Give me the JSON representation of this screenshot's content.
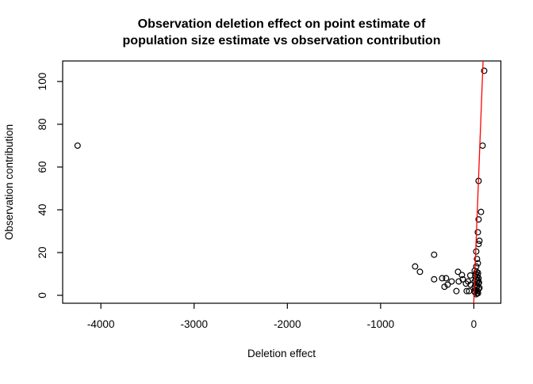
{
  "chart_data": {
    "type": "scatter",
    "title_line1": "Observation deletion effect on point estimate of",
    "title_line2": "population size estimate vs observation contribution",
    "xlabel": "Deletion effect",
    "ylabel": "Observation contribution",
    "x_ticks": [
      -4000,
      -3000,
      -2000,
      -1000,
      0
    ],
    "x_tick_labels": [
      "-4000",
      "-3000",
      "-2000",
      "-1000",
      "0"
    ],
    "y_ticks": [
      0,
      20,
      40,
      60,
      80,
      100
    ],
    "y_tick_labels": [
      "0",
      "20",
      "40",
      "60",
      "80",
      "100"
    ],
    "xlim": [
      -4410,
      290
    ],
    "ylim": [
      -3.7,
      109.6
    ],
    "grid": false,
    "background_color": "#ffffff",
    "text_color": "#000000",
    "frame_color": "#000000",
    "point_color": "#000000",
    "point_style": "open-circle",
    "line": {
      "color": "#ff0000",
      "x1": -1,
      "y1": -3.7,
      "x2": 99,
      "y2": 109.6
    },
    "points": [
      [
        -4250,
        70
      ],
      [
        -630,
        13.5
      ],
      [
        -578,
        11
      ],
      [
        -426,
        19
      ],
      [
        -426,
        7.5
      ],
      [
        -340,
        8
      ],
      [
        -315,
        4
      ],
      [
        -298,
        8
      ],
      [
        -281,
        5
      ],
      [
        -238,
        6.5
      ],
      [
        -187,
        2
      ],
      [
        -170,
        11
      ],
      [
        -162,
        6.5
      ],
      [
        -128,
        9.5
      ],
      [
        -119,
        7.5
      ],
      [
        -85,
        5.5
      ],
      [
        -77,
        2
      ],
      [
        -62,
        6.5
      ],
      [
        -51,
        2
      ],
      [
        -38,
        9.3
      ],
      [
        -34,
        5
      ],
      [
        9,
        11.5
      ],
      [
        26,
        13.5
      ],
      [
        43,
        15
      ],
      [
        34,
        17
      ],
      [
        26,
        20.5
      ],
      [
        51,
        24
      ],
      [
        60,
        25.5
      ],
      [
        43,
        29.5
      ],
      [
        51,
        35.5
      ],
      [
        77,
        39
      ],
      [
        51,
        53.5
      ],
      [
        94,
        70
      ],
      [
        111,
        105
      ],
      [
        30,
        11
      ],
      [
        45,
        10.5
      ],
      [
        22,
        10
      ],
      [
        40,
        9.5
      ],
      [
        15,
        9
      ],
      [
        35,
        8.5
      ],
      [
        50,
        8
      ],
      [
        20,
        7.5
      ],
      [
        42,
        7
      ],
      [
        10,
        6.5
      ],
      [
        30,
        6
      ],
      [
        48,
        5.5
      ],
      [
        55,
        6
      ],
      [
        18,
        5
      ],
      [
        38,
        4.5
      ],
      [
        8,
        4
      ],
      [
        28,
        3.5
      ],
      [
        60,
        3.5
      ],
      [
        52,
        3
      ],
      [
        22,
        2.5
      ],
      [
        40,
        2
      ],
      [
        12,
        1.5
      ],
      [
        33,
        1
      ],
      [
        25,
        0.5
      ],
      [
        5,
        2
      ],
      [
        45,
        1
      ]
    ]
  }
}
